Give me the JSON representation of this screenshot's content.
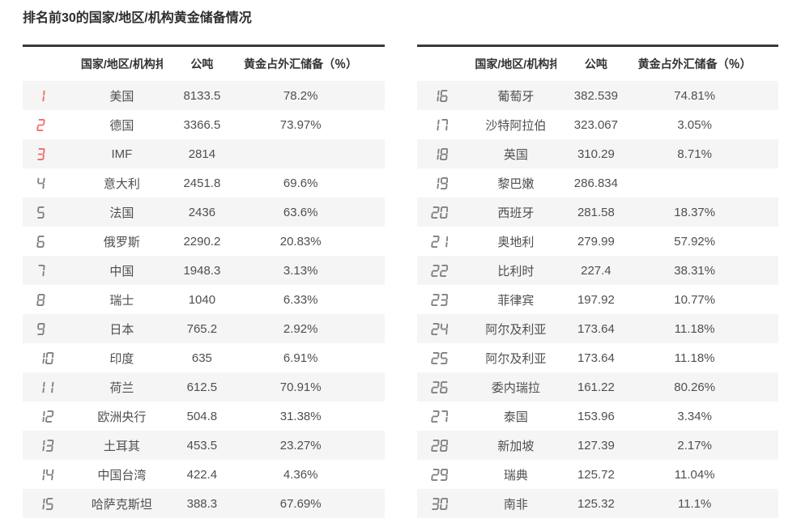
{
  "title": "排名前30的国家/地区/机构黄金储备情况",
  "colors": {
    "rank_top3": "#ef6b6b",
    "rank_default": "#808080",
    "top_border": "#3a3a3a",
    "row_stripe": "#f5f5f5",
    "header_text": "#333333",
    "body_text": "#4f4f4f"
  },
  "red_ranks": [
    1,
    2,
    3
  ],
  "chart_data": [
    {
      "type": "table",
      "headers": {
        "rank": "",
        "name": "国家/地区/机构排名",
        "tonnes": "公吨",
        "pct": "黄金占外汇储备（％）"
      },
      "rows": [
        {
          "rank": "1",
          "name": "美国",
          "tonnes": "8133.5",
          "pct": "78.2%"
        },
        {
          "rank": "2",
          "name": "德国",
          "tonnes": "3366.5",
          "pct": "73.97%"
        },
        {
          "rank": "3",
          "name": "IMF",
          "tonnes": "2814",
          "pct": ""
        },
        {
          "rank": "4",
          "name": "意大利",
          "tonnes": "2451.8",
          "pct": "69.6%"
        },
        {
          "rank": "5",
          "name": "法国",
          "tonnes": "2436",
          "pct": "63.6%"
        },
        {
          "rank": "6",
          "name": "俄罗斯",
          "tonnes": "2290.2",
          "pct": "20.83%"
        },
        {
          "rank": "7",
          "name": "中国",
          "tonnes": "1948.3",
          "pct": "3.13%"
        },
        {
          "rank": "8",
          "name": "瑞士",
          "tonnes": "1040",
          "pct": "6.33%"
        },
        {
          "rank": "9",
          "name": "日本",
          "tonnes": "765.2",
          "pct": "2.92%"
        },
        {
          "rank": "10",
          "name": "印度",
          "tonnes": "635",
          "pct": "6.91%"
        },
        {
          "rank": "11",
          "name": "荷兰",
          "tonnes": "612.5",
          "pct": "70.91%"
        },
        {
          "rank": "12",
          "name": "欧洲央行",
          "tonnes": "504.8",
          "pct": "31.38%"
        },
        {
          "rank": "13",
          "name": "土耳其",
          "tonnes": "453.5",
          "pct": "23.27%"
        },
        {
          "rank": "14",
          "name": "中国台湾",
          "tonnes": "422.4",
          "pct": "4.36%"
        },
        {
          "rank": "15",
          "name": "哈萨克斯坦",
          "tonnes": "388.3",
          "pct": "67.69%"
        }
      ]
    },
    {
      "type": "table",
      "headers": {
        "rank": "",
        "name": "国家/地区/机构排名",
        "tonnes": "公吨",
        "pct": "黄金占外汇储备（％）"
      },
      "rows": [
        {
          "rank": "16",
          "name": "葡萄牙",
          "tonnes": "382.539",
          "pct": "74.81%"
        },
        {
          "rank": "17",
          "name": "沙特阿拉伯",
          "tonnes": "323.067",
          "pct": "3.05%"
        },
        {
          "rank": "18",
          "name": "英国",
          "tonnes": "310.29",
          "pct": "8.71%"
        },
        {
          "rank": "19",
          "name": "黎巴嫩",
          "tonnes": "286.834",
          "pct": ""
        },
        {
          "rank": "20",
          "name": "西班牙",
          "tonnes": "281.58",
          "pct": "18.37%"
        },
        {
          "rank": "21",
          "name": "奥地利",
          "tonnes": "279.99",
          "pct": "57.92%"
        },
        {
          "rank": "22",
          "name": "比利时",
          "tonnes": "227.4",
          "pct": "38.31%"
        },
        {
          "rank": "23",
          "name": "菲律宾",
          "tonnes": "197.92",
          "pct": "10.77%"
        },
        {
          "rank": "24",
          "name": "阿尔及利亚",
          "tonnes": "173.64",
          "pct": "11.18%"
        },
        {
          "rank": "25",
          "name": "阿尔及利亚",
          "tonnes": "173.64",
          "pct": "11.18%"
        },
        {
          "rank": "26",
          "name": "委内瑞拉",
          "tonnes": "161.22",
          "pct": "80.26%"
        },
        {
          "rank": "27",
          "name": "泰国",
          "tonnes": "153.96",
          "pct": "3.34%"
        },
        {
          "rank": "28",
          "name": "新加坡",
          "tonnes": "127.39",
          "pct": "2.17%"
        },
        {
          "rank": "29",
          "name": "瑞典",
          "tonnes": "125.72",
          "pct": "11.04%"
        },
        {
          "rank": "30",
          "name": "南非",
          "tonnes": "125.32",
          "pct": "11.1%"
        }
      ]
    }
  ]
}
